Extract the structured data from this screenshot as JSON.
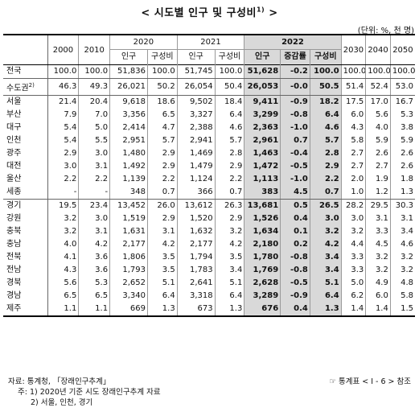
{
  "title": "< 시도별 인구 및 구성비",
  "title_sup": "1)",
  "title_end": " >",
  "unit": "(단위: %, 천 명)",
  "headers": {
    "y2000": "2000",
    "y2010": "2010",
    "y2020": "2020",
    "y2021": "2021",
    "y2022": "2022",
    "y2030": "2030",
    "y2040": "2040",
    "y2050": "2050",
    "pop": "인구",
    "share": "구성비",
    "change": "증감률"
  },
  "rows": [
    {
      "name": "전국",
      "sup": "",
      "v": [
        "100.0",
        "100.0",
        "51,836",
        "100.0",
        "51,745",
        "100.0",
        "51,628",
        "-0.2",
        "100.0",
        "100.0",
        "100.0",
        "100.0"
      ]
    },
    {
      "name": "수도권",
      "sup": "2)",
      "v": [
        "46.3",
        "49.3",
        "26,021",
        "50.2",
        "26,054",
        "50.4",
        "26,053",
        "-0.0",
        "50.5",
        "51.4",
        "52.4",
        "53.0"
      ]
    },
    {
      "name": "서울",
      "sup": "",
      "v": [
        "21.4",
        "20.4",
        "9,618",
        "18.6",
        "9,502",
        "18.4",
        "9,411",
        "-0.9",
        "18.2",
        "17.5",
        "17.0",
        "16.7"
      ]
    },
    {
      "name": "부산",
      "sup": "",
      "v": [
        "7.9",
        "7.0",
        "3,356",
        "6.5",
        "3,327",
        "6.4",
        "3,299",
        "-0.8",
        "6.4",
        "6.0",
        "5.6",
        "5.3"
      ]
    },
    {
      "name": "대구",
      "sup": "",
      "v": [
        "5.4",
        "5.0",
        "2,414",
        "4.7",
        "2,388",
        "4.6",
        "2,363",
        "-1.0",
        "4.6",
        "4.3",
        "4.0",
        "3.8"
      ]
    },
    {
      "name": "인천",
      "sup": "",
      "v": [
        "5.4",
        "5.5",
        "2,951",
        "5.7",
        "2,941",
        "5.7",
        "2,961",
        "0.7",
        "5.7",
        "5.8",
        "5.9",
        "5.9"
      ]
    },
    {
      "name": "광주",
      "sup": "",
      "v": [
        "2.9",
        "3.0",
        "1,480",
        "2.9",
        "1,469",
        "2.8",
        "1,463",
        "-0.4",
        "2.8",
        "2.7",
        "2.6",
        "2.6"
      ]
    },
    {
      "name": "대전",
      "sup": "",
      "v": [
        "3.0",
        "3.1",
        "1,492",
        "2.9",
        "1,479",
        "2.9",
        "1,472",
        "-0.5",
        "2.9",
        "2.7",
        "2.7",
        "2.6"
      ]
    },
    {
      "name": "울산",
      "sup": "",
      "v": [
        "2.2",
        "2.2",
        "1,139",
        "2.2",
        "1,124",
        "2.2",
        "1,113",
        "-1.0",
        "2.2",
        "2.0",
        "1.9",
        "1.8"
      ]
    },
    {
      "name": "세종",
      "sup": "",
      "v": [
        "-",
        "-",
        "348",
        "0.7",
        "366",
        "0.7",
        "383",
        "4.5",
        "0.7",
        "1.0",
        "1.2",
        "1.3"
      ]
    },
    {
      "name": "경기",
      "sup": "",
      "v": [
        "19.5",
        "23.4",
        "13,452",
        "26.0",
        "13,612",
        "26.3",
        "13,681",
        "0.5",
        "26.5",
        "28.2",
        "29.5",
        "30.3"
      ]
    },
    {
      "name": "강원",
      "sup": "",
      "v": [
        "3.2",
        "3.0",
        "1,519",
        "2.9",
        "1,520",
        "2.9",
        "1,526",
        "0.4",
        "3.0",
        "3.0",
        "3.1",
        "3.1"
      ]
    },
    {
      "name": "충북",
      "sup": "",
      "v": [
        "3.2",
        "3.1",
        "1,631",
        "3.1",
        "1,632",
        "3.2",
        "1,634",
        "0.1",
        "3.2",
        "3.2",
        "3.3",
        "3.4"
      ]
    },
    {
      "name": "충남",
      "sup": "",
      "v": [
        "4.0",
        "4.2",
        "2,177",
        "4.2",
        "2,177",
        "4.2",
        "2,180",
        "0.2",
        "4.2",
        "4.4",
        "4.5",
        "4.6"
      ]
    },
    {
      "name": "전북",
      "sup": "",
      "v": [
        "4.1",
        "3.6",
        "1,806",
        "3.5",
        "1,794",
        "3.5",
        "1,780",
        "-0.8",
        "3.4",
        "3.3",
        "3.2",
        "3.2"
      ]
    },
    {
      "name": "전남",
      "sup": "",
      "v": [
        "4.3",
        "3.6",
        "1,793",
        "3.5",
        "1,783",
        "3.4",
        "1,769",
        "-0.8",
        "3.4",
        "3.3",
        "3.2",
        "3.2"
      ]
    },
    {
      "name": "경북",
      "sup": "",
      "v": [
        "5.6",
        "5.3",
        "2,652",
        "5.1",
        "2,641",
        "5.1",
        "2,628",
        "-0.5",
        "5.1",
        "5.0",
        "4.9",
        "4.8"
      ]
    },
    {
      "name": "경남",
      "sup": "",
      "v": [
        "6.5",
        "6.5",
        "3,340",
        "6.4",
        "3,318",
        "6.4",
        "3,289",
        "-0.9",
        "6.4",
        "6.2",
        "6.0",
        "5.8"
      ]
    },
    {
      "name": "제주",
      "sup": "",
      "v": [
        "1.1",
        "1.1",
        "669",
        "1.3",
        "673",
        "1.3",
        "676",
        "0.4",
        "1.3",
        "1.4",
        "1.4",
        "1.5"
      ]
    }
  ],
  "footer": {
    "source": "자료: 통계청, 「장래인구추계」",
    "note1": "주: 1) 2020년 기준 시도 장래인구추계 자료",
    "note2": "2) 서울, 인천, 경기",
    "ref": "☞ 통계표 < I - 6 > 참조"
  },
  "colors": {
    "highlight": "#d9d9d9"
  }
}
